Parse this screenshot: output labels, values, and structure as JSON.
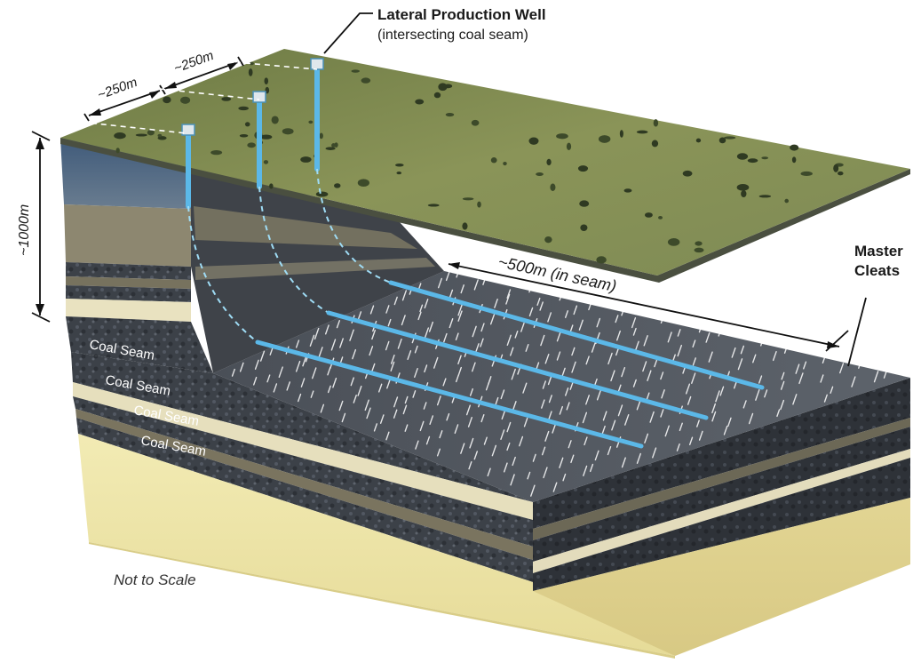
{
  "labels": {
    "well_title": "Lateral Production Well",
    "well_subtitle": "(intersecting coal seam)",
    "spacing_1": "~250m",
    "spacing_2": "~250m",
    "depth": "~1000m",
    "lateral_length": "~500m (in seam)",
    "master_cleats_1": "Master",
    "master_cleats_2": "Cleats",
    "not_to_scale": "Not to Scale"
  },
  "coal_seams": [
    "Coal Seam",
    "Coal Seam",
    "Coal Seam",
    "Coal Seam"
  ],
  "colors": {
    "terrain": "#7d8a4e",
    "coal": "#3d4249",
    "sandstone": "#8c8672",
    "shale": "#6e6a58",
    "base_sand": "#efe6a6",
    "cream": "#e9e2c0",
    "well_blue": "#5bb8e8"
  }
}
